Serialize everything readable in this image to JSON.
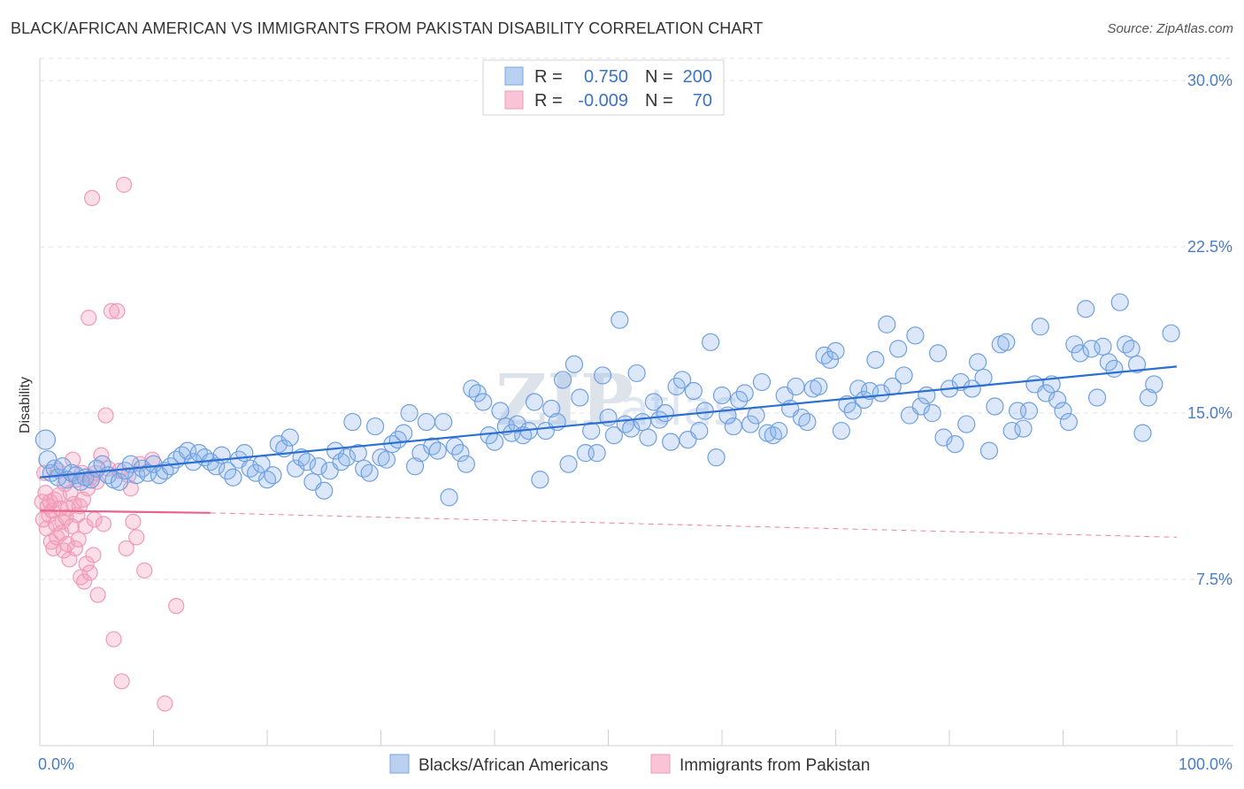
{
  "header": {
    "title": "BLACK/AFRICAN AMERICAN VS IMMIGRANTS FROM PAKISTAN DISABILITY CORRELATION CHART",
    "source": "Source: ZipAtlas.com"
  },
  "watermark": {
    "part1": "ZIP",
    "part2": "atlas"
  },
  "legend": {
    "r_label": "R =",
    "n_label": "N =",
    "entries": [
      {
        "r": "0.750",
        "n": "200"
      },
      {
        "r": "-0.009",
        "n": "70"
      }
    ]
  },
  "chart_data": {
    "type": "scatter",
    "title": "BLACK/AFRICAN AMERICAN VS IMMIGRANTS FROM PAKISTAN DISABILITY CORRELATION CHART",
    "xlabel": "",
    "ylabel": "Disability",
    "xlim": [
      0,
      100
    ],
    "ylim": [
      0,
      31
    ],
    "x_tick_labels": [
      "0.0%",
      "100.0%"
    ],
    "y_ticks": [
      7.5,
      15.0,
      22.5,
      30.0
    ],
    "y_tick_labels": [
      "7.5%",
      "15.0%",
      "22.5%",
      "30.0%"
    ],
    "grid": "horizontal dashed",
    "legend_position": "top-center",
    "colors": {
      "blue": "#6fa0e0",
      "blue_line": "#2b6fd1",
      "pink": "#f19ab5",
      "pink_line": "#e8628e"
    },
    "series": [
      {
        "name": "Blacks/African Americans",
        "color": "#6fa0e0",
        "trend": {
          "x": [
            0,
            100
          ],
          "y": [
            12.1,
            17.1
          ]
        },
        "points": [
          [
            0.5,
            13.8
          ],
          [
            0.7,
            12.9
          ],
          [
            1.0,
            12.3
          ],
          [
            1.3,
            12.5
          ],
          [
            1.6,
            12.1
          ],
          [
            2.0,
            12.6
          ],
          [
            2.4,
            12.0
          ],
          [
            2.8,
            12.3
          ],
          [
            3.2,
            12.2
          ],
          [
            3.6,
            11.9
          ],
          [
            4.0,
            12.1
          ],
          [
            4.5,
            12.0
          ],
          [
            5.0,
            12.5
          ],
          [
            5.5,
            12.7
          ],
          [
            6.0,
            12.2
          ],
          [
            6.5,
            12.0
          ],
          [
            7.0,
            11.9
          ],
          [
            7.5,
            12.4
          ],
          [
            8.0,
            12.7
          ],
          [
            8.5,
            12.2
          ],
          [
            9.0,
            12.5
          ],
          [
            9.5,
            12.3
          ],
          [
            10.0,
            12.7
          ],
          [
            10.5,
            12.2
          ],
          [
            11.0,
            12.4
          ],
          [
            11.5,
            12.6
          ],
          [
            12.0,
            12.9
          ],
          [
            12.5,
            13.1
          ],
          [
            13.0,
            13.3
          ],
          [
            13.5,
            12.8
          ],
          [
            14.0,
            13.2
          ],
          [
            14.5,
            13.0
          ],
          [
            15.0,
            12.8
          ],
          [
            15.5,
            12.6
          ],
          [
            16.0,
            13.1
          ],
          [
            16.5,
            12.4
          ],
          [
            17.0,
            12.1
          ],
          [
            17.5,
            12.9
          ],
          [
            18.0,
            13.2
          ],
          [
            18.5,
            12.5
          ],
          [
            19.0,
            12.3
          ],
          [
            19.5,
            12.7
          ],
          [
            20.0,
            12.0
          ],
          [
            20.5,
            12.2
          ],
          [
            21.0,
            13.6
          ],
          [
            21.5,
            13.4
          ],
          [
            22.0,
            13.9
          ],
          [
            22.5,
            12.5
          ],
          [
            23.0,
            13.0
          ],
          [
            23.5,
            12.8
          ],
          [
            24.0,
            11.9
          ],
          [
            24.5,
            12.6
          ],
          [
            25.0,
            11.5
          ],
          [
            25.5,
            12.4
          ],
          [
            26.0,
            13.3
          ],
          [
            26.5,
            12.8
          ],
          [
            27.0,
            13.0
          ],
          [
            27.5,
            14.6
          ],
          [
            28.0,
            13.2
          ],
          [
            28.5,
            12.5
          ],
          [
            29.0,
            12.3
          ],
          [
            29.5,
            14.4
          ],
          [
            30.0,
            13.0
          ],
          [
            30.5,
            12.9
          ],
          [
            31.0,
            13.6
          ],
          [
            31.5,
            13.8
          ],
          [
            32.0,
            14.1
          ],
          [
            32.5,
            15.0
          ],
          [
            33.0,
            12.6
          ],
          [
            33.5,
            13.2
          ],
          [
            34.0,
            14.6
          ],
          [
            34.5,
            13.5
          ],
          [
            35.0,
            13.3
          ],
          [
            35.5,
            14.6
          ],
          [
            36.0,
            11.2
          ],
          [
            36.5,
            13.5
          ],
          [
            37.0,
            13.2
          ],
          [
            37.5,
            12.7
          ],
          [
            38.0,
            16.1
          ],
          [
            38.5,
            15.9
          ],
          [
            39.0,
            15.5
          ],
          [
            39.5,
            14.0
          ],
          [
            40.0,
            13.7
          ],
          [
            40.5,
            15.1
          ],
          [
            41.0,
            14.4
          ],
          [
            41.5,
            14.1
          ],
          [
            42.0,
            14.5
          ],
          [
            42.5,
            14.0
          ],
          [
            43.0,
            14.2
          ],
          [
            43.5,
            15.5
          ],
          [
            44.0,
            12.0
          ],
          [
            44.5,
            14.2
          ],
          [
            45.0,
            15.2
          ],
          [
            45.5,
            14.6
          ],
          [
            46.0,
            16.5
          ],
          [
            46.5,
            12.7
          ],
          [
            47.0,
            17.2
          ],
          [
            47.5,
            15.7
          ],
          [
            48.0,
            13.2
          ],
          [
            48.5,
            14.2
          ],
          [
            49.0,
            13.2
          ],
          [
            49.5,
            16.7
          ],
          [
            50.0,
            14.8
          ],
          [
            50.5,
            14.0
          ],
          [
            51.0,
            19.2
          ],
          [
            51.5,
            14.5
          ],
          [
            52.0,
            14.3
          ],
          [
            52.5,
            16.8
          ],
          [
            53.0,
            14.6
          ],
          [
            53.5,
            13.9
          ],
          [
            54.0,
            15.5
          ],
          [
            54.5,
            14.7
          ],
          [
            55.0,
            15.0
          ],
          [
            55.5,
            13.7
          ],
          [
            56.0,
            16.2
          ],
          [
            56.5,
            16.5
          ],
          [
            57.0,
            13.8
          ],
          [
            57.5,
            16.0
          ],
          [
            58.0,
            14.2
          ],
          [
            58.5,
            15.1
          ],
          [
            59.0,
            18.2
          ],
          [
            59.5,
            13.0
          ],
          [
            60.0,
            15.8
          ],
          [
            60.5,
            14.9
          ],
          [
            61.0,
            14.4
          ],
          [
            61.5,
            15.6
          ],
          [
            62.0,
            15.9
          ],
          [
            62.5,
            14.5
          ],
          [
            63.0,
            14.9
          ],
          [
            63.5,
            16.4
          ],
          [
            64.0,
            14.1
          ],
          [
            64.5,
            14.0
          ],
          [
            65.0,
            14.2
          ],
          [
            65.5,
            15.8
          ],
          [
            66.0,
            15.2
          ],
          [
            66.5,
            16.2
          ],
          [
            67.0,
            14.8
          ],
          [
            67.5,
            14.6
          ],
          [
            68.0,
            16.1
          ],
          [
            68.5,
            16.2
          ],
          [
            69.0,
            17.6
          ],
          [
            69.5,
            17.4
          ],
          [
            70.0,
            17.8
          ],
          [
            70.5,
            14.2
          ],
          [
            71.0,
            15.4
          ],
          [
            71.5,
            15.1
          ],
          [
            72.0,
            16.1
          ],
          [
            72.5,
            15.6
          ],
          [
            73.0,
            16.0
          ],
          [
            73.5,
            17.4
          ],
          [
            74.0,
            15.9
          ],
          [
            74.5,
            19.0
          ],
          [
            75.0,
            16.2
          ],
          [
            75.5,
            17.9
          ],
          [
            76.0,
            16.7
          ],
          [
            76.5,
            14.9
          ],
          [
            77.0,
            18.5
          ],
          [
            77.5,
            15.3
          ],
          [
            78.0,
            15.8
          ],
          [
            78.5,
            15.0
          ],
          [
            79.0,
            17.7
          ],
          [
            79.5,
            13.9
          ],
          [
            80.0,
            16.1
          ],
          [
            80.5,
            13.6
          ],
          [
            81.0,
            16.4
          ],
          [
            81.5,
            14.5
          ],
          [
            82.0,
            16.1
          ],
          [
            82.5,
            17.3
          ],
          [
            83.0,
            16.6
          ],
          [
            83.5,
            13.3
          ],
          [
            84.0,
            15.3
          ],
          [
            84.5,
            18.1
          ],
          [
            85.0,
            18.2
          ],
          [
            85.5,
            14.2
          ],
          [
            86.0,
            15.1
          ],
          [
            86.5,
            14.3
          ],
          [
            87.0,
            15.1
          ],
          [
            87.5,
            16.3
          ],
          [
            88.0,
            18.9
          ],
          [
            88.5,
            15.9
          ],
          [
            89.0,
            16.3
          ],
          [
            89.5,
            15.6
          ],
          [
            90.0,
            15.1
          ],
          [
            90.5,
            14.6
          ],
          [
            91.0,
            18.1
          ],
          [
            91.5,
            17.7
          ],
          [
            92.0,
            19.7
          ],
          [
            92.5,
            17.9
          ],
          [
            93.0,
            15.7
          ],
          [
            93.5,
            18.0
          ],
          [
            94.0,
            17.3
          ],
          [
            94.5,
            17.0
          ],
          [
            95.0,
            20.0
          ],
          [
            95.5,
            18.1
          ],
          [
            96.0,
            17.9
          ],
          [
            96.5,
            17.2
          ],
          [
            97.0,
            14.1
          ],
          [
            97.5,
            15.7
          ],
          [
            98.0,
            16.3
          ],
          [
            99.5,
            18.6
          ]
        ]
      },
      {
        "name": "Immigrants from Pakistan",
        "color": "#f19ab5",
        "trend": {
          "x": [
            0,
            15
          ],
          "y": [
            10.6,
            10.5
          ],
          "dashed_to": [
            100,
            9.4
          ]
        },
        "points": [
          [
            0.2,
            11.0
          ],
          [
            0.3,
            10.2
          ],
          [
            0.4,
            12.3
          ],
          [
            0.5,
            11.4
          ],
          [
            0.6,
            9.8
          ],
          [
            0.7,
            10.8
          ],
          [
            0.8,
            10.4
          ],
          [
            0.9,
            11.0
          ],
          [
            1.0,
            9.2
          ],
          [
            1.1,
            10.6
          ],
          [
            1.2,
            8.9
          ],
          [
            1.3,
            11.1
          ],
          [
            1.4,
            10.0
          ],
          [
            1.5,
            9.4
          ],
          [
            1.6,
            12.4
          ],
          [
            1.7,
            11.3
          ],
          [
            1.8,
            10.7
          ],
          [
            1.9,
            9.6
          ],
          [
            2.0,
            10.1
          ],
          [
            2.1,
            8.8
          ],
          [
            2.2,
            11.8
          ],
          [
            2.3,
            10.3
          ],
          [
            2.4,
            9.1
          ],
          [
            2.5,
            10.7
          ],
          [
            2.6,
            8.4
          ],
          [
            2.7,
            11.4
          ],
          [
            2.8,
            9.9
          ],
          [
            2.9,
            12.9
          ],
          [
            3.0,
            10.9
          ],
          [
            3.1,
            8.9
          ],
          [
            3.2,
            12.0
          ],
          [
            3.3,
            10.4
          ],
          [
            3.4,
            9.3
          ],
          [
            3.5,
            10.8
          ],
          [
            3.6,
            7.6
          ],
          [
            3.7,
            12.3
          ],
          [
            3.8,
            11.1
          ],
          [
            3.9,
            7.4
          ],
          [
            4.0,
            9.9
          ],
          [
            4.1,
            8.2
          ],
          [
            4.2,
            11.6
          ],
          [
            4.3,
            19.3
          ],
          [
            4.4,
            7.8
          ],
          [
            4.5,
            12.1
          ],
          [
            4.6,
            24.7
          ],
          [
            4.7,
            8.6
          ],
          [
            4.8,
            10.2
          ],
          [
            4.9,
            12.3
          ],
          [
            5.0,
            11.9
          ],
          [
            5.1,
            6.8
          ],
          [
            5.4,
            13.1
          ],
          [
            5.6,
            10.0
          ],
          [
            5.8,
            14.9
          ],
          [
            6.0,
            12.5
          ],
          [
            6.3,
            19.6
          ],
          [
            6.5,
            4.8
          ],
          [
            6.8,
            19.6
          ],
          [
            7.0,
            12.4
          ],
          [
            7.2,
            2.9
          ],
          [
            7.4,
            25.3
          ],
          [
            7.6,
            8.9
          ],
          [
            7.8,
            12.2
          ],
          [
            8.0,
            11.6
          ],
          [
            8.2,
            10.1
          ],
          [
            8.5,
            9.4
          ],
          [
            8.8,
            12.7
          ],
          [
            9.2,
            7.9
          ],
          [
            9.9,
            12.9
          ],
          [
            11.0,
            1.9
          ],
          [
            12.0,
            6.3
          ]
        ]
      }
    ]
  }
}
